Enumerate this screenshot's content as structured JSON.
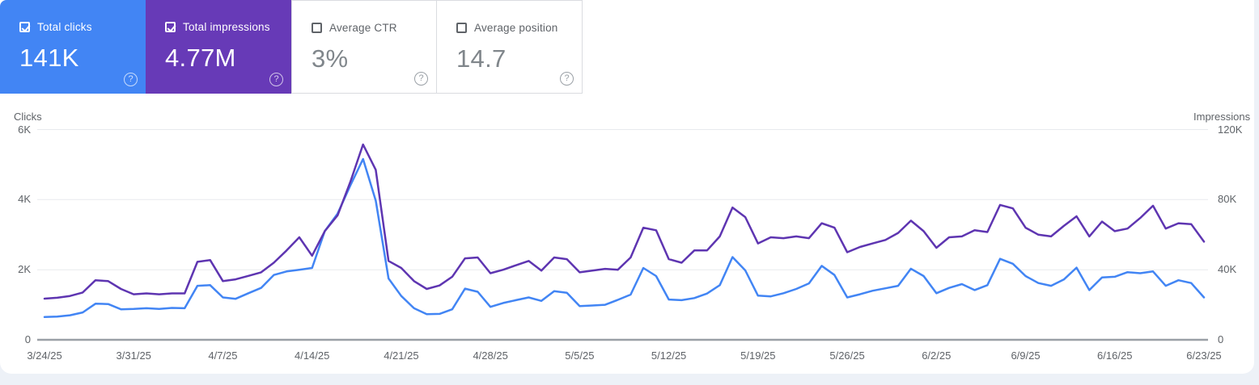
{
  "metric_cards": [
    {
      "label": "Total clicks",
      "value": "141K",
      "checked": true,
      "accent": "#4285f4"
    },
    {
      "label": "Total impressions",
      "value": "4.77M",
      "checked": true,
      "accent": "#673ab7"
    },
    {
      "label": "Average CTR",
      "value": "3%",
      "checked": false,
      "accent": "#ffffff"
    },
    {
      "label": "Average position",
      "value": "14.7",
      "checked": false,
      "accent": "#ffffff"
    }
  ],
  "help_icon": "circled-question-mark",
  "colors": {
    "clicks_line": "#4285f4",
    "impressions_line": "#5e35b1",
    "grid_line": "#e8eaed",
    "axis_line": "#9aa0a6",
    "tick_text": "#5f6368",
    "page_background": "#edf1f7",
    "panel_background": "#ffffff"
  },
  "chart_data": {
    "type": "line",
    "title": "",
    "grid": true,
    "left_axis": {
      "title": "Clicks",
      "ticks": [
        "6K",
        "4K",
        "2K",
        "0"
      ],
      "range": [
        0,
        6000
      ]
    },
    "right_axis": {
      "title": "Impressions",
      "ticks": [
        "120K",
        "80K",
        "40K",
        "0"
      ],
      "range": [
        0,
        120000
      ]
    },
    "x_tick_labels": [
      "3/24/25",
      "3/31/25",
      "4/7/25",
      "4/14/25",
      "4/21/25",
      "4/28/25",
      "5/5/25",
      "5/12/25",
      "5/19/25",
      "5/26/25",
      "6/2/25",
      "6/9/25",
      "6/16/25",
      "6/23/25"
    ],
    "dates": [
      "3/24/25",
      "3/25/25",
      "3/26/25",
      "3/27/25",
      "3/28/25",
      "3/29/25",
      "3/30/25",
      "3/31/25",
      "4/1/25",
      "4/2/25",
      "4/3/25",
      "4/4/25",
      "4/5/25",
      "4/6/25",
      "4/7/25",
      "4/8/25",
      "4/9/25",
      "4/10/25",
      "4/11/25",
      "4/12/25",
      "4/13/25",
      "4/14/25",
      "4/15/25",
      "4/16/25",
      "4/17/25",
      "4/18/25",
      "4/19/25",
      "4/20/25",
      "4/21/25",
      "4/22/25",
      "4/23/25",
      "4/24/25",
      "4/25/25",
      "4/26/25",
      "4/27/25",
      "4/28/25",
      "4/29/25",
      "4/30/25",
      "5/1/25",
      "5/2/25",
      "5/3/25",
      "5/4/25",
      "5/5/25",
      "5/6/25",
      "5/7/25",
      "5/8/25",
      "5/9/25",
      "5/10/25",
      "5/11/25",
      "5/12/25",
      "5/13/25",
      "5/14/25",
      "5/15/25",
      "5/16/25",
      "5/17/25",
      "5/18/25",
      "5/19/25",
      "5/20/25",
      "5/21/25",
      "5/22/25",
      "5/23/25",
      "5/24/25",
      "5/25/25",
      "5/26/25",
      "5/27/25",
      "5/28/25",
      "5/29/25",
      "5/30/25",
      "5/31/25",
      "6/1/25",
      "6/2/25",
      "6/3/25",
      "6/4/25",
      "6/5/25",
      "6/6/25",
      "6/7/25",
      "6/8/25",
      "6/9/25",
      "6/10/25",
      "6/11/25",
      "6/12/25",
      "6/13/25",
      "6/14/25",
      "6/15/25",
      "6/16/25",
      "6/17/25",
      "6/18/25",
      "6/19/25",
      "6/20/25",
      "6/21/25",
      "6/22/25",
      "6/23/25"
    ],
    "series": [
      {
        "name": "Clicks",
        "axis": "left",
        "color": "#4285f4",
        "total": "141K",
        "values": [
          650,
          660,
          700,
          780,
          1030,
          1020,
          870,
          880,
          900,
          880,
          910,
          900,
          1540,
          1560,
          1210,
          1170,
          1330,
          1480,
          1850,
          1950,
          2000,
          2050,
          3100,
          3600,
          4400,
          5160,
          3970,
          1750,
          1250,
          900,
          730,
          740,
          870,
          1460,
          1370,
          940,
          1050,
          1130,
          1210,
          1110,
          1390,
          1340,
          960,
          980,
          1000,
          1140,
          1290,
          2050,
          1820,
          1150,
          1130,
          1190,
          1320,
          1560,
          2360,
          1980,
          1260,
          1240,
          1330,
          1450,
          1610,
          2110,
          1850,
          1210,
          1300,
          1400,
          1470,
          1540,
          2030,
          1820,
          1330,
          1480,
          1590,
          1420,
          1560,
          2310,
          2170,
          1820,
          1620,
          1540,
          1720,
          2060,
          1420,
          1780,
          1800,
          1930,
          1900,
          1950,
          1540,
          1700,
          1620,
          1210
        ]
      },
      {
        "name": "Impressions",
        "axis": "right",
        "color": "#5e35b1",
        "total": "4.77M",
        "values": [
          23500,
          24000,
          25000,
          27000,
          34000,
          33500,
          29000,
          26000,
          26500,
          26000,
          26500,
          26500,
          44500,
          45500,
          33500,
          34500,
          36500,
          38500,
          44000,
          51000,
          58500,
          48000,
          62000,
          71000,
          90000,
          111500,
          97000,
          45000,
          41000,
          33500,
          29000,
          31000,
          36000,
          46500,
          47000,
          38000,
          40000,
          42500,
          45000,
          39500,
          47000,
          46000,
          38500,
          39500,
          40500,
          40000,
          47000,
          64000,
          62500,
          46000,
          44000,
          51000,
          51000,
          59000,
          75500,
          70000,
          55000,
          58500,
          58000,
          59000,
          58000,
          66500,
          64000,
          50000,
          53000,
          55000,
          57000,
          61000,
          68000,
          62000,
          52500,
          58500,
          59000,
          62500,
          61500,
          77000,
          75000,
          64000,
          60000,
          59000,
          65000,
          70500,
          59000,
          67500,
          62000,
          63500,
          69500,
          76500,
          63500,
          66500,
          66000,
          56000
        ]
      }
    ]
  }
}
